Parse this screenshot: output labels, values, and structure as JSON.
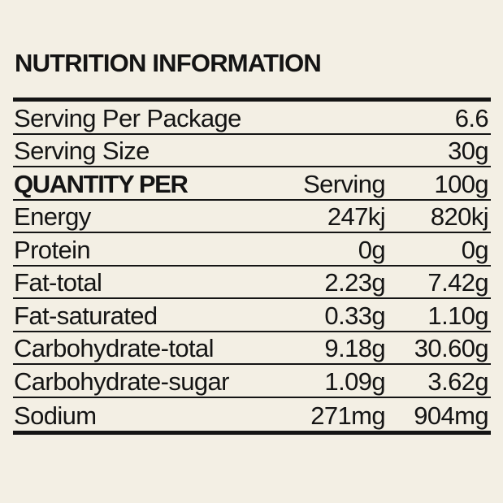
{
  "title": "NUTRITION INFORMATION",
  "serving_per_package": {
    "label": "Serving Per Package",
    "value": "6.6"
  },
  "serving_size": {
    "label": "Serving Size",
    "value": "30g"
  },
  "columns": {
    "label": "QUANTITY PER",
    "per_serving": "Serving",
    "per_100g": "100g"
  },
  "nutrients": [
    {
      "name": "Energy",
      "per_serving": "247kj",
      "per_100g": "820kj"
    },
    {
      "name": "Protein",
      "per_serving": "0g",
      "per_100g": "0g"
    },
    {
      "name": "Fat-total",
      "per_serving": "2.23g",
      "per_100g": "7.42g"
    },
    {
      "name": "Fat-saturated",
      "per_serving": "0.33g",
      "per_100g": "1.10g"
    },
    {
      "name": "Carbohydrate-total",
      "per_serving": "9.18g",
      "per_100g": "30.60g"
    },
    {
      "name": "Carbohydrate-sugar",
      "per_serving": "1.09g",
      "per_100g": "3.62g"
    },
    {
      "name": "Sodium",
      "per_serving": "271mg",
      "per_100g": "904mg"
    }
  ]
}
